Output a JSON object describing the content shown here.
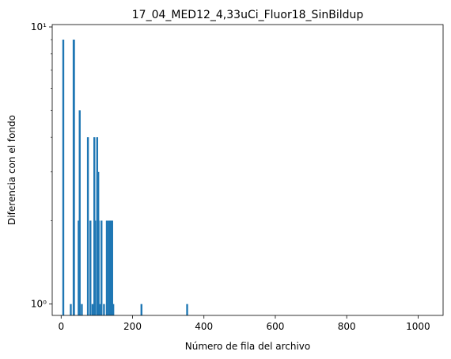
{
  "chart_data": {
    "type": "bar",
    "title": "17_04_MED12_4,33uCi_Fluor18_SinBildup",
    "xlabel": "Número de fila del archivo",
    "ylabel": "Diferencia con el fondo",
    "yscale": "log",
    "xlim": [
      -25,
      1070
    ],
    "ylim": [
      0.91,
      10.2
    ],
    "x_ticks": [
      0,
      200,
      400,
      600,
      800,
      1000
    ],
    "x_tick_labels": [
      "0",
      "200",
      "400",
      "600",
      "800",
      "1000"
    ],
    "y_ticks": [
      1,
      10
    ],
    "y_tick_labels": [
      "10⁰",
      "10¹"
    ],
    "grid": false,
    "bar_color": "#1f77b4",
    "points": [
      {
        "x": 6,
        "y": 9
      },
      {
        "x": 27,
        "y": 1
      },
      {
        "x": 35,
        "y": 9
      },
      {
        "x": 36,
        "y": 9
      },
      {
        "x": 49,
        "y": 2
      },
      {
        "x": 52,
        "y": 5
      },
      {
        "x": 58,
        "y": 1
      },
      {
        "x": 75,
        "y": 4
      },
      {
        "x": 82,
        "y": 2
      },
      {
        "x": 88,
        "y": 1
      },
      {
        "x": 93,
        "y": 4
      },
      {
        "x": 95,
        "y": 2
      },
      {
        "x": 101,
        "y": 4
      },
      {
        "x": 104,
        "y": 3
      },
      {
        "x": 105,
        "y": 2
      },
      {
        "x": 108,
        "y": 1
      },
      {
        "x": 113,
        "y": 2
      },
      {
        "x": 120,
        "y": 1
      },
      {
        "x": 128,
        "y": 2
      },
      {
        "x": 133,
        "y": 2
      },
      {
        "x": 137,
        "y": 2
      },
      {
        "x": 140,
        "y": 2
      },
      {
        "x": 143,
        "y": 2
      },
      {
        "x": 146,
        "y": 1
      },
      {
        "x": 225,
        "y": 1
      },
      {
        "x": 353,
        "y": 1
      }
    ]
  }
}
